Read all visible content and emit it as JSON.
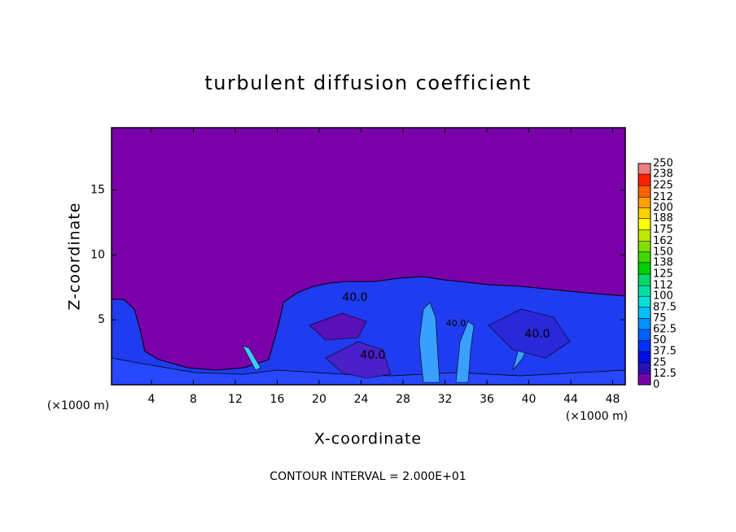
{
  "chart_data": {
    "type": "contour",
    "title": "turbulent diffusion coefficient",
    "xlabel": "X-coordinate",
    "ylabel": "Z-coordinate",
    "x_unit_left": "(×1000 m)",
    "x_unit_right": "(×1000 m)",
    "footer": "CONTOUR INTERVAL = 2.000E+01",
    "contour_labels": [
      "40.0",
      "40.0",
      "40.0",
      "40.0"
    ],
    "xlim": [
      0.2,
      49.2
    ],
    "ylim": [
      0,
      19.8
    ],
    "xticks": [
      4,
      8,
      12,
      16,
      20,
      24,
      28,
      32,
      36,
      40,
      44,
      48
    ],
    "yticks": [
      5,
      10,
      15
    ],
    "background_color": "#7a00aa",
    "colorbar": {
      "ticks": [
        0,
        12.5,
        25,
        37.5,
        50,
        62.5,
        75,
        87.5,
        100,
        112,
        125,
        138,
        150,
        162,
        175,
        188,
        200,
        212,
        225,
        238,
        250
      ],
      "colors": [
        "#7a00aa",
        "#2a10b8",
        "#0010e0",
        "#0030ff",
        "#0060ff",
        "#0090ff",
        "#00c0ff",
        "#00e0d8",
        "#00e0a0",
        "#00d868",
        "#00d000",
        "#40d800",
        "#80e000",
        "#c0e800",
        "#ffff00",
        "#ffd000",
        "#ffa000",
        "#ff6000",
        "#ff2000",
        "#f08080"
      ]
    }
  }
}
